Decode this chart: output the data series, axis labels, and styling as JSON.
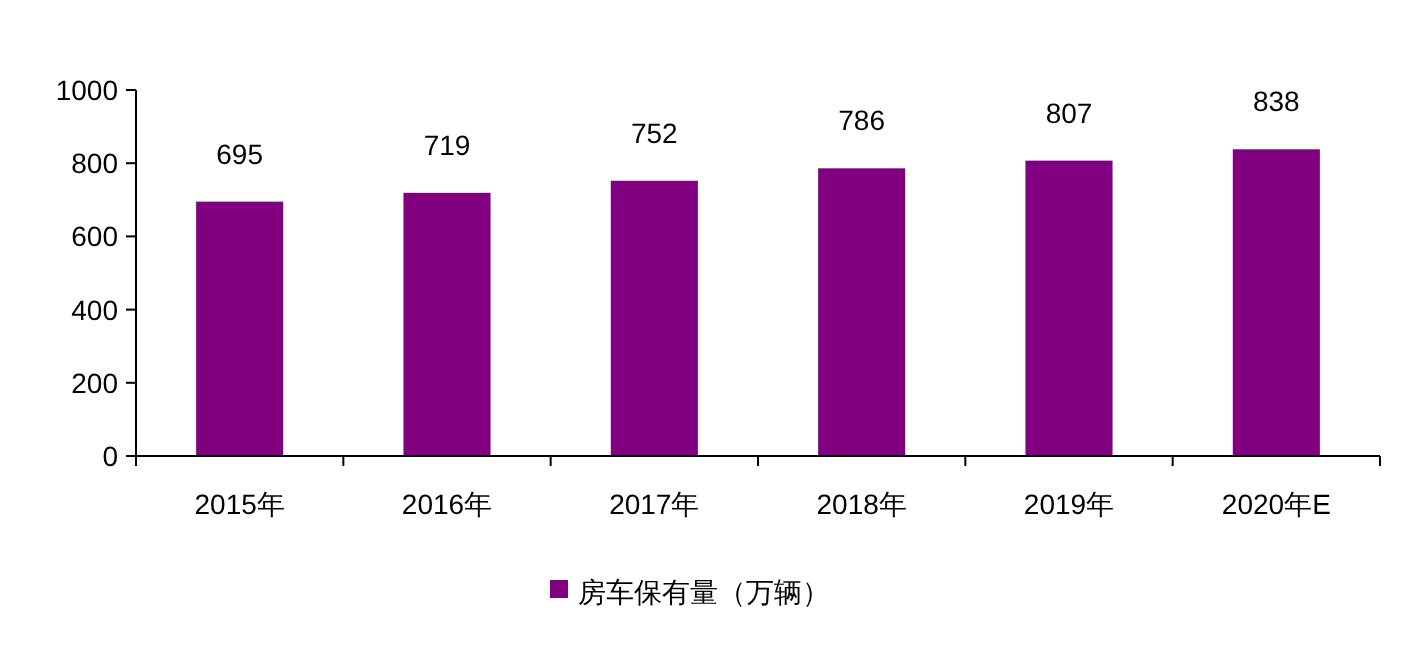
{
  "chart_data": {
    "type": "bar",
    "categories": [
      "2015年",
      "2016年",
      "2017年",
      "2018年",
      "2019年",
      "2020年E"
    ],
    "series": [
      {
        "name": "房车保有量（万辆）",
        "color": "#800080",
        "values": [
          695,
          719,
          752,
          786,
          807,
          838
        ]
      }
    ],
    "ylim": [
      0,
      1000
    ],
    "yticks": [
      0,
      200,
      400,
      600,
      800,
      1000
    ],
    "data_labels": true,
    "legend": "bottom",
    "grid": false
  }
}
